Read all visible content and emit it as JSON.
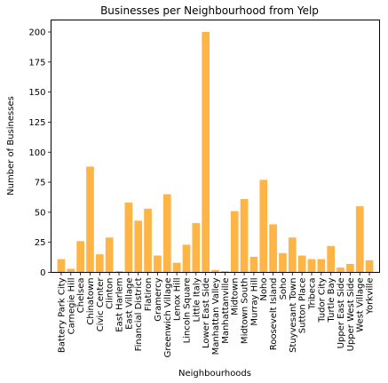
{
  "chart_data": {
    "type": "bar",
    "title": "Businesses per Neighbourhood from Yelp",
    "xlabel": "Neighbourhoods",
    "ylabel": "Number of Businesses",
    "ylim": [
      0,
      210
    ],
    "yticks": [
      0,
      25,
      50,
      75,
      100,
      125,
      150,
      175,
      200
    ],
    "grid": false,
    "bar_color": "#FFA726",
    "categories": [
      "Battery Park City",
      "Carnegie Hill",
      "Chelsea",
      "Chinatown",
      "Civic Center",
      "Clinton",
      "East Harlem",
      "East Village",
      "Financial District",
      "Flatiron",
      "Gramercy",
      "Greenwich Village",
      "Lenox Hill",
      "Lincoln Square",
      "Little Italy",
      "Lower East Side",
      "Manhattan Valley",
      "Manhattanville",
      "Midtown",
      "Midtown South",
      "Murray Hill",
      "Noho",
      "Roosevelt Island",
      "Soho",
      "Stuyvesant Town",
      "Sutton Place",
      "Tribeca",
      "Tudor City",
      "Turtle Bay",
      "Upper East Side",
      "Upper West Side",
      "West Village",
      "Yorkville"
    ],
    "values": [
      11,
      3,
      26,
      88,
      15,
      29,
      1,
      58,
      43,
      53,
      14,
      65,
      8,
      23,
      41,
      200,
      2,
      1,
      51,
      61,
      13,
      77,
      40,
      16,
      29,
      14,
      11,
      11,
      22,
      4,
      7,
      55,
      10
    ]
  }
}
